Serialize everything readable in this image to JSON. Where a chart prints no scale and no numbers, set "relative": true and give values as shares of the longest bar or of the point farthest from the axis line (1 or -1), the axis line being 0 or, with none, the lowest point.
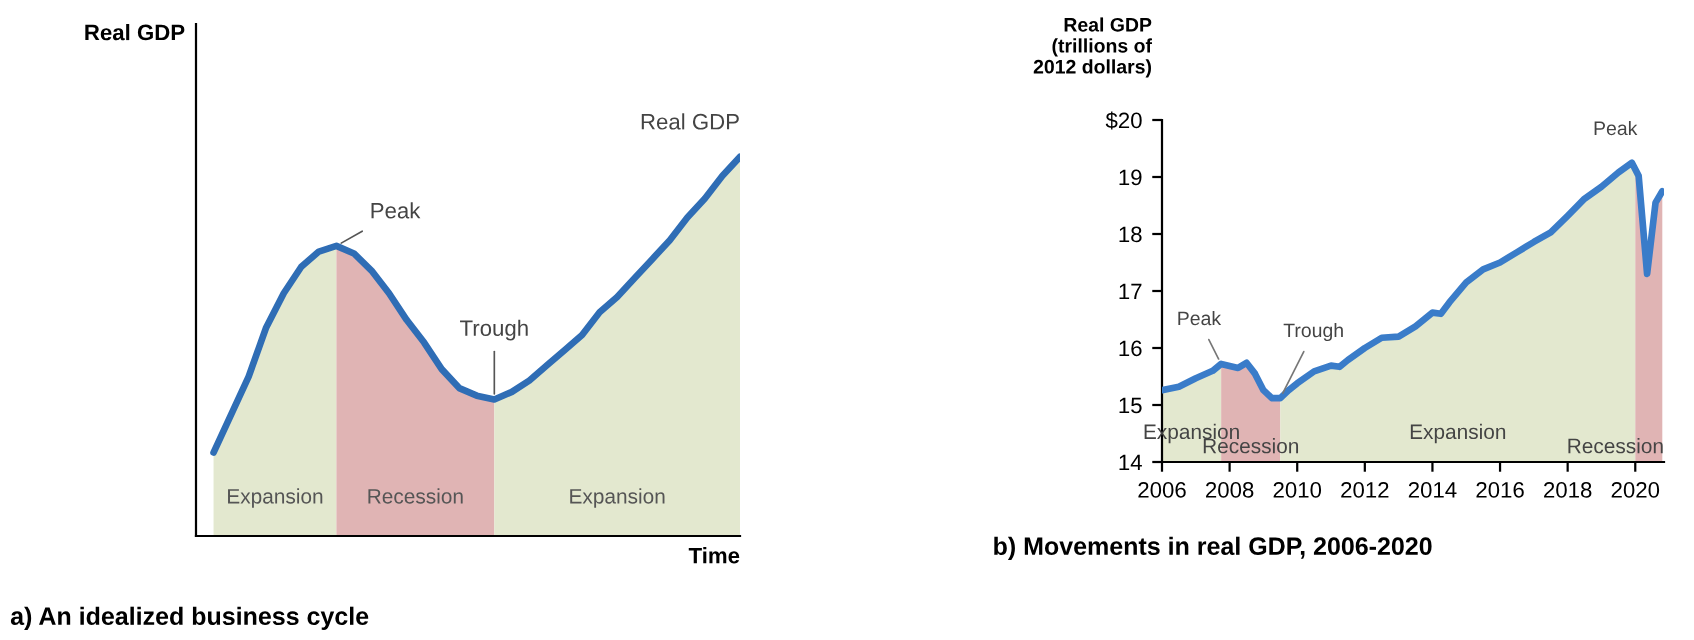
{
  "chart_data": [
    {
      "type": "line",
      "title": "a) An idealized business cycle",
      "xlabel": "Time",
      "ylabel": "Real GDP",
      "relative": true,
      "tick_labels": false,
      "categories": [
        null,
        null,
        null,
        null,
        null,
        null,
        null,
        null,
        null,
        null,
        null,
        null,
        null,
        null,
        null,
        null,
        null,
        null,
        null,
        null,
        null,
        null,
        null,
        null,
        null,
        null,
        null,
        null,
        null,
        null,
        null
      ],
      "series": [
        {
          "name": "Expansion",
          "type": "area",
          "color": "#e3e8cf",
          "values": [
            0.22,
            0.32,
            0.42,
            0.55,
            0.64,
            0.71,
            0.75,
            0.765,
            null,
            null,
            null,
            null,
            null,
            null,
            null,
            null,
            null,
            null,
            null,
            null,
            null,
            null,
            null,
            null,
            null,
            null,
            null,
            null,
            null,
            null,
            null
          ]
        },
        {
          "name": "Recession",
          "type": "area",
          "color": "#e0b4b4",
          "values": [
            null,
            null,
            null,
            null,
            null,
            null,
            null,
            0.765,
            0.745,
            0.7,
            0.64,
            0.57,
            0.51,
            0.44,
            0.39,
            0.37,
            0.36,
            null,
            null,
            null,
            null,
            null,
            null,
            null,
            null,
            null,
            null,
            null,
            null,
            null,
            null
          ]
        },
        {
          "name": "Expansion",
          "type": "area",
          "color": "#e3e8cf",
          "values": [
            null,
            null,
            null,
            null,
            null,
            null,
            null,
            null,
            null,
            null,
            null,
            null,
            null,
            null,
            null,
            null,
            0.36,
            0.38,
            0.41,
            0.45,
            0.49,
            0.53,
            0.59,
            0.63,
            0.68,
            0.73,
            0.78,
            0.84,
            0.89,
            0.95,
            1.0
          ]
        },
        {
          "name": "Real GDP",
          "type": "line",
          "color": "#2f6db5",
          "values": [
            0.22,
            0.32,
            0.42,
            0.55,
            0.64,
            0.71,
            0.75,
            0.765,
            0.745,
            0.7,
            0.64,
            0.57,
            0.51,
            0.44,
            0.39,
            0.37,
            0.36,
            0.38,
            0.41,
            0.45,
            0.49,
            0.53,
            0.59,
            0.63,
            0.68,
            0.73,
            0.78,
            0.84,
            0.89,
            0.95,
            1.0
          ]
        }
      ],
      "annotations": [
        "Peak",
        "Trough"
      ]
    },
    {
      "type": "line",
      "title": "b) Movements in real GDP, 2006-2020",
      "ylabel": "Real GDP\n(trillions of\n2012 dollars)",
      "x": [
        2006.0,
        2006.5,
        2007.0,
        2007.5,
        2007.75,
        2008.25,
        2008.5,
        2008.75,
        2009.0,
        2009.25,
        2009.5,
        2009.75,
        2010.0,
        2010.5,
        2011.0,
        2011.25,
        2011.5,
        2012.0,
        2012.5,
        2013.0,
        2013.5,
        2014.0,
        2014.25,
        2014.5,
        2015.0,
        2015.5,
        2016.0,
        2016.5,
        2017.0,
        2017.5,
        2018.0,
        2018.5,
        2019.0,
        2019.5,
        2019.9,
        2020.1,
        2020.35,
        2020.6,
        2020.8
      ],
      "series": [
        {
          "color": "#3a7cc9",
          "values": [
            15.26,
            15.32,
            15.47,
            15.6,
            15.72,
            15.65,
            15.74,
            15.55,
            15.26,
            15.12,
            15.12,
            15.26,
            15.38,
            15.59,
            15.69,
            15.67,
            15.79,
            16.0,
            16.18,
            16.2,
            16.38,
            16.62,
            16.6,
            16.8,
            17.15,
            17.38,
            17.5,
            17.68,
            17.86,
            18.03,
            18.32,
            18.62,
            18.83,
            19.08,
            19.25,
            19.02,
            17.3,
            18.55,
            18.75
          ]
        }
      ],
      "xlim": [
        2006,
        2020.85
      ],
      "ylim": [
        14,
        20
      ],
      "xticks": [
        2006,
        2008,
        2010,
        2012,
        2014,
        2016,
        2018,
        2020
      ],
      "yticks": [
        14,
        15,
        16,
        17,
        18,
        19,
        {
          "value": 20,
          "label": "$20"
        }
      ],
      "bands": [
        {
          "axis": "x",
          "from": 2006.0,
          "to": 2007.75,
          "label": "Expansion",
          "color": "#e3e8cf"
        },
        {
          "axis": "x",
          "from": 2007.75,
          "to": 2009.5,
          "label": "Recession",
          "color": "#e0b4b4"
        },
        {
          "axis": "x",
          "from": 2009.5,
          "to": 2020.0,
          "label": "Expansion",
          "color": "#e3e8cf"
        },
        {
          "axis": "x",
          "from": 2020.0,
          "to": 2020.85,
          "label": "Recession",
          "color": "#e0b4b4"
        }
      ],
      "annotations": [
        {
          "text": "Peak",
          "x": 2007.75,
          "y": 15.72
        },
        {
          "text": "Trough",
          "x": 2009.5,
          "y": 15.12
        },
        {
          "text": "Peak",
          "x": 2019.9,
          "y": 19.25
        }
      ]
    }
  ]
}
